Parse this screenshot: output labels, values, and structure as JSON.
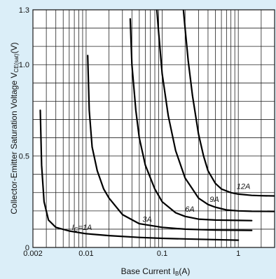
{
  "colors": {
    "background": "#dbeef8",
    "plot_background": "#ffffff",
    "line": "#000000",
    "grid": "#222222"
  },
  "chart_data": {
    "type": "line",
    "x_scale": "log",
    "xlim": [
      0.002,
      3
    ],
    "ylim": [
      0,
      1.3
    ],
    "grid": true,
    "xlabel": "Base Current ",
    "xlabel_sym": "I",
    "xlabel_sub": "B",
    "xlabel_unit": "(A)",
    "ylabel": "Collector-Emitter Saturation Voltage ",
    "ylabel_sym": "V",
    "ylabel_sub": "CE(sat)",
    "ylabel_unit": "(V)",
    "x_ticks": [
      0.002,
      0.01,
      0.1,
      1
    ],
    "x_tick_labels": [
      "0.002",
      "0.01",
      "0.1",
      "1"
    ],
    "y_ticks": [
      0,
      0.5,
      1.0,
      1.3
    ],
    "y_tick_labels": [
      "0",
      "0.5",
      "1.0",
      "1.3"
    ],
    "series": [
      {
        "name": "1A",
        "label_prefix": "I",
        "label_sub": "C",
        "label_suffix": "=1A",
        "x": [
          0.0025,
          0.0026,
          0.0028,
          0.0032,
          0.004,
          0.006,
          0.01,
          0.02,
          0.05,
          0.1,
          0.3,
          1
        ],
        "y": [
          0.75,
          0.45,
          0.25,
          0.15,
          0.11,
          0.09,
          0.075,
          0.065,
          0.055,
          0.05,
          0.045,
          0.04
        ]
      },
      {
        "name": "3A",
        "x": [
          0.0105,
          0.011,
          0.012,
          0.014,
          0.017,
          0.02,
          0.03,
          0.05,
          0.1,
          0.2,
          0.5,
          1.5
        ],
        "y": [
          1.05,
          0.75,
          0.55,
          0.42,
          0.32,
          0.27,
          0.18,
          0.13,
          0.11,
          0.1,
          0.095,
          0.093
        ]
      },
      {
        "name": "6A",
        "x": [
          0.038,
          0.04,
          0.045,
          0.05,
          0.06,
          0.08,
          0.1,
          0.15,
          0.2,
          0.3,
          0.5,
          1,
          1.5
        ],
        "y": [
          1.25,
          1.0,
          0.75,
          0.6,
          0.45,
          0.32,
          0.25,
          0.19,
          0.17,
          0.155,
          0.15,
          0.148,
          0.147
        ]
      },
      {
        "name": "9A",
        "x": [
          0.085,
          0.09,
          0.1,
          0.12,
          0.15,
          0.2,
          0.25,
          0.3,
          0.4,
          0.5,
          0.7,
          1,
          1.5,
          3
        ],
        "y": [
          1.3,
          1.17,
          0.95,
          0.72,
          0.53,
          0.38,
          0.32,
          0.27,
          0.235,
          0.22,
          0.205,
          0.2,
          0.198,
          0.197
        ]
      },
      {
        "name": "12A",
        "x": [
          0.19,
          0.2,
          0.22,
          0.25,
          0.3,
          0.35,
          0.4,
          0.5,
          0.6,
          0.8,
          1,
          1.5,
          2,
          3
        ],
        "y": [
          1.3,
          1.2,
          1.02,
          0.83,
          0.62,
          0.5,
          0.42,
          0.35,
          0.32,
          0.3,
          0.292,
          0.285,
          0.283,
          0.282
        ]
      }
    ]
  }
}
